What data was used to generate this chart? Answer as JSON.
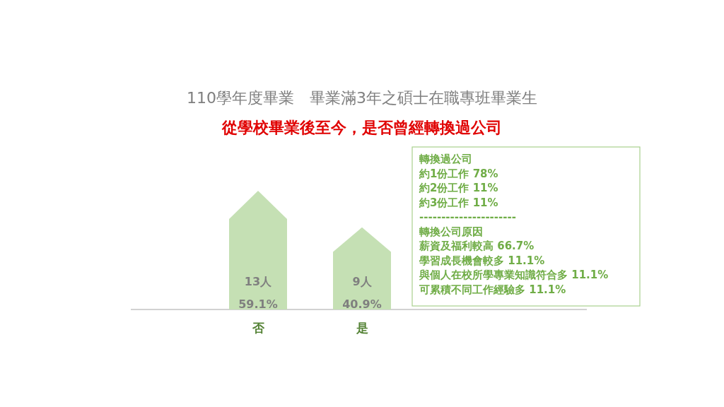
{
  "chart_data": {
    "type": "bar",
    "title": "110學年度畢業　畢業滿3年之碩士在職專班畢業生",
    "subtitle": "從學校畢業後至今，是否曾經轉換過公司",
    "categories": [
      "否",
      "是"
    ],
    "values": [
      13,
      9
    ],
    "color": "#c5e0b4",
    "value_labels": [
      "13人\n59.1%",
      "9人\n40.9%"
    ],
    "annotations": [
      "轉換過公司",
      "約1份工作  78%",
      "約2份工作  11%",
      "約3份工作  11%",
      "----------------------",
      "轉換公司原因",
      "薪資及福利較高  66.7%",
      "學習成長機會較多  11.1%",
      "與個人在校所學專業知識符合多 11.1%",
      "可累積不同工作經驗多  11.1%"
    ]
  }
}
